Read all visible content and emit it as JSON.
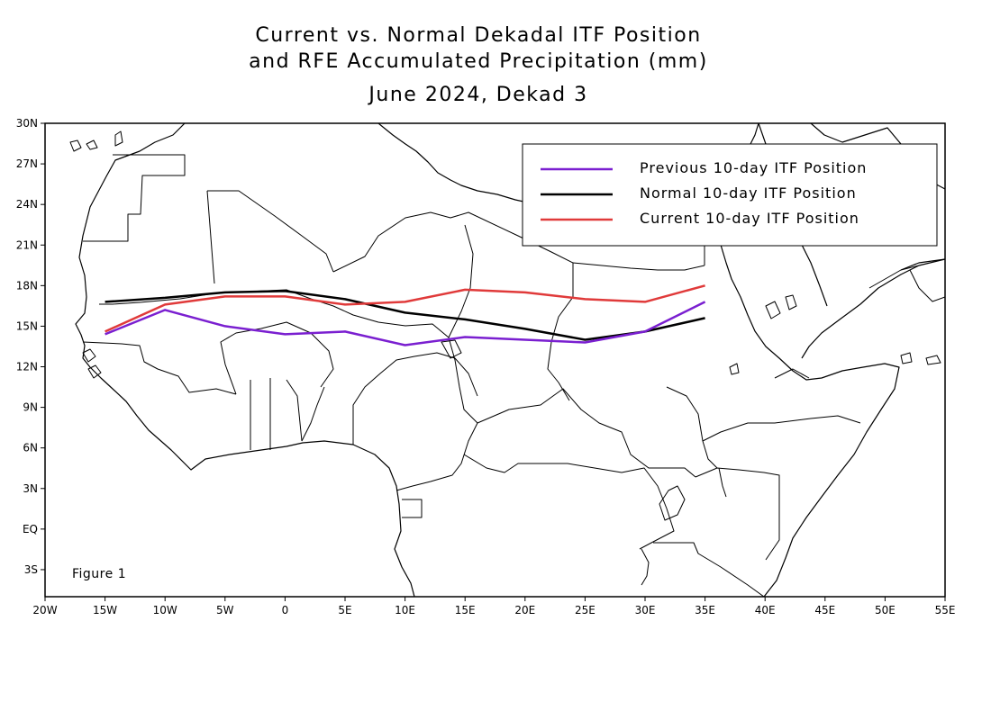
{
  "title": {
    "line1": "Current vs. Normal Dekadal ITF Position",
    "line2": "and RFE Accumulated Precipitation (mm)",
    "line3": "June 2024, Dekad 3"
  },
  "figure_label": "Figure 1",
  "chart_data": {
    "type": "line",
    "xlim": [
      -20,
      55
    ],
    "ylim": [
      -5,
      30
    ],
    "x_ticks": [
      -20,
      -15,
      -10,
      -5,
      0,
      5,
      10,
      15,
      20,
      25,
      30,
      35,
      40,
      45,
      50,
      55
    ],
    "x_tick_labels": [
      "20W",
      "15W",
      "10W",
      "5W",
      "0",
      "5E",
      "10E",
      "15E",
      "20E",
      "25E",
      "30E",
      "35E",
      "40E",
      "45E",
      "50E",
      "55E"
    ],
    "y_ticks": [
      -3,
      0,
      3,
      6,
      9,
      12,
      15,
      18,
      21,
      24,
      27,
      30
    ],
    "y_tick_labels": [
      "3S",
      "EQ",
      "3N",
      "6N",
      "9N",
      "12N",
      "15N",
      "18N",
      "21N",
      "24N",
      "27N",
      "30N"
    ],
    "legend_position": "top-right",
    "series": [
      {
        "name": "Previous 10-day ITF Position",
        "color": "#7a1fd0",
        "x": [
          -15,
          -10,
          -5,
          0,
          5,
          10,
          15,
          20,
          25,
          30,
          35
        ],
        "y": [
          14.4,
          16.2,
          15.0,
          14.4,
          14.6,
          13.6,
          14.2,
          14.0,
          13.8,
          14.6,
          16.8
        ]
      },
      {
        "name": "Normal 10-day ITF Position",
        "color": "#000000",
        "x": [
          -15,
          -10,
          -5,
          0,
          5,
          10,
          15,
          20,
          25,
          30,
          35
        ],
        "y": [
          16.8,
          17.1,
          17.5,
          17.6,
          17.0,
          16.0,
          15.5,
          14.8,
          14.0,
          14.6,
          15.6
        ]
      },
      {
        "name": "Current 10-day ITF Position",
        "color": "#e03a3a",
        "x": [
          -15,
          -10,
          -5,
          0,
          5,
          10,
          15,
          20,
          25,
          30,
          35
        ],
        "y": [
          14.6,
          16.6,
          17.2,
          17.2,
          16.6,
          16.8,
          17.7,
          17.5,
          17.0,
          16.8,
          18.0
        ]
      }
    ]
  }
}
